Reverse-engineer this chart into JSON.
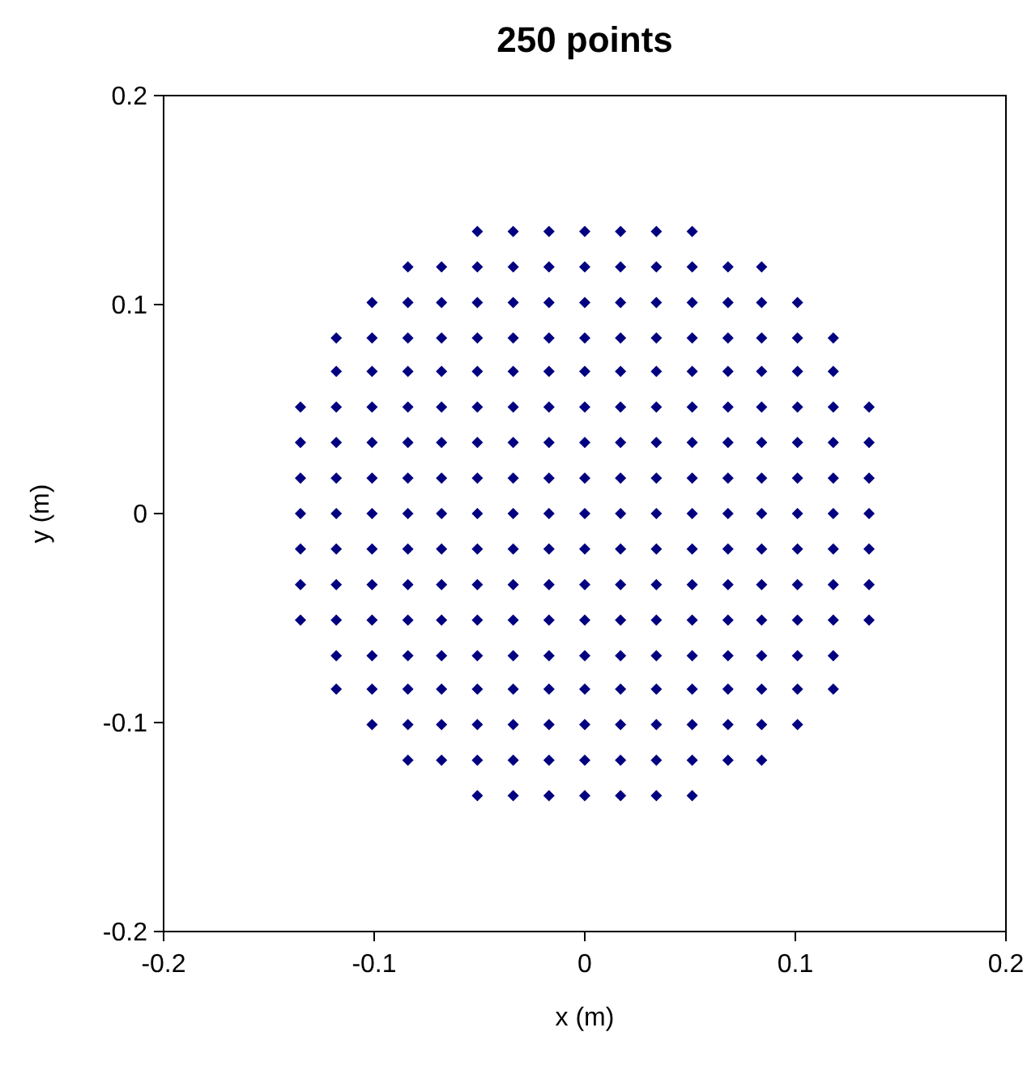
{
  "chart_data": {
    "type": "scatter",
    "title": "250 points",
    "xlabel": "x (m)",
    "ylabel": "y (m)",
    "xlim": [
      -0.2,
      0.2
    ],
    "ylim": [
      -0.2,
      0.2
    ],
    "xticks": [
      -0.2,
      -0.1,
      0,
      0.1,
      0.2
    ],
    "yticks": [
      -0.2,
      -0.1,
      0,
      0.1,
      0.2
    ],
    "grid": false,
    "marker": "diamond",
    "series": [
      {
        "color": "#000080",
        "x": [
          -0.051,
          -0.034,
          -0.017,
          0,
          0.017,
          0.034,
          0.051,
          -0.084,
          -0.068,
          -0.051,
          -0.034,
          -0.017,
          0,
          0.017,
          0.034,
          0.051,
          0.068,
          0.084,
          -0.101,
          -0.084,
          -0.068,
          -0.051,
          -0.034,
          -0.017,
          0,
          0.017,
          0.034,
          0.051,
          0.068,
          0.084,
          0.101,
          -0.118,
          -0.101,
          -0.084,
          -0.068,
          -0.051,
          -0.034,
          -0.017,
          0,
          0.017,
          0.034,
          0.051,
          0.068,
          0.084,
          0.101,
          0.118,
          -0.118,
          -0.101,
          -0.084,
          -0.068,
          -0.051,
          -0.034,
          -0.017,
          0,
          0.017,
          0.034,
          0.051,
          0.068,
          0.084,
          0.101,
          0.118,
          -0.135,
          -0.118,
          -0.101,
          -0.084,
          -0.068,
          -0.051,
          -0.034,
          -0.017,
          0,
          0.017,
          0.034,
          0.051,
          0.068,
          0.084,
          0.101,
          0.118,
          0.135,
          -0.135,
          -0.118,
          -0.101,
          -0.084,
          -0.068,
          -0.051,
          -0.034,
          -0.017,
          0,
          0.017,
          0.034,
          0.051,
          0.068,
          0.084,
          0.101,
          0.118,
          0.135,
          -0.135,
          -0.118,
          -0.101,
          -0.084,
          -0.068,
          -0.051,
          -0.034,
          -0.017,
          0,
          0.017,
          0.034,
          0.051,
          0.068,
          0.084,
          0.101,
          0.118,
          0.135,
          -0.135,
          -0.118,
          -0.101,
          -0.084,
          -0.068,
          -0.051,
          -0.034,
          -0.017,
          0,
          0.017,
          0.034,
          0.051,
          0.068,
          0.084,
          0.101,
          0.118,
          0.135,
          -0.135,
          -0.118,
          -0.101,
          -0.084,
          -0.068,
          -0.051,
          -0.034,
          -0.017,
          0,
          0.017,
          0.034,
          0.051,
          0.068,
          0.084,
          0.101,
          0.118,
          0.135,
          -0.135,
          -0.118,
          -0.101,
          -0.084,
          -0.068,
          -0.051,
          -0.034,
          -0.017,
          0,
          0.017,
          0.034,
          0.051,
          0.068,
          0.084,
          0.101,
          0.118,
          0.135,
          -0.135,
          -0.118,
          -0.101,
          -0.084,
          -0.068,
          -0.051,
          -0.034,
          -0.017,
          0,
          0.017,
          0.034,
          0.051,
          0.068,
          0.084,
          0.101,
          0.118,
          0.135,
          -0.118,
          -0.101,
          -0.084,
          -0.068,
          -0.051,
          -0.034,
          -0.017,
          0,
          0.017,
          0.034,
          0.051,
          0.068,
          0.084,
          0.101,
          0.118,
          -0.118,
          -0.101,
          -0.084,
          -0.068,
          -0.051,
          -0.034,
          -0.017,
          0,
          0.017,
          0.034,
          0.051,
          0.068,
          0.084,
          0.101,
          0.118,
          -0.101,
          -0.084,
          -0.068,
          -0.051,
          -0.034,
          -0.017,
          0,
          0.017,
          0.034,
          0.051,
          0.068,
          0.084,
          0.101,
          -0.084,
          -0.068,
          -0.051,
          -0.034,
          -0.017,
          0,
          0.017,
          0.034,
          0.051,
          0.068,
          0.084,
          -0.051,
          -0.034,
          -0.017,
          0,
          0.017,
          0.034,
          0.051
        ],
        "values": [
          0.135,
          0.135,
          0.135,
          0.135,
          0.135,
          0.135,
          0.135,
          0.118,
          0.118,
          0.118,
          0.118,
          0.118,
          0.118,
          0.118,
          0.118,
          0.118,
          0.118,
          0.118,
          0.101,
          0.101,
          0.101,
          0.101,
          0.101,
          0.101,
          0.101,
          0.101,
          0.101,
          0.101,
          0.101,
          0.101,
          0.101,
          0.084,
          0.084,
          0.084,
          0.084,
          0.084,
          0.084,
          0.084,
          0.084,
          0.084,
          0.084,
          0.084,
          0.084,
          0.084,
          0.084,
          0.084,
          0.068,
          0.068,
          0.068,
          0.068,
          0.068,
          0.068,
          0.068,
          0.068,
          0.068,
          0.068,
          0.068,
          0.068,
          0.068,
          0.068,
          0.068,
          0.051,
          0.051,
          0.051,
          0.051,
          0.051,
          0.051,
          0.051,
          0.051,
          0.051,
          0.051,
          0.051,
          0.051,
          0.051,
          0.051,
          0.051,
          0.051,
          0.051,
          0.034,
          0.034,
          0.034,
          0.034,
          0.034,
          0.034,
          0.034,
          0.034,
          0.034,
          0.034,
          0.034,
          0.034,
          0.034,
          0.034,
          0.034,
          0.034,
          0.034,
          0.017,
          0.017,
          0.017,
          0.017,
          0.017,
          0.017,
          0.017,
          0.017,
          0.017,
          0.017,
          0.017,
          0.017,
          0.017,
          0.017,
          0.017,
          0.017,
          0.017,
          0,
          0,
          0,
          0,
          0,
          0,
          0,
          0,
          0,
          0,
          0,
          0,
          0,
          0,
          0,
          0,
          0,
          -0.017,
          -0.017,
          -0.017,
          -0.017,
          -0.017,
          -0.017,
          -0.017,
          -0.017,
          -0.017,
          -0.017,
          -0.017,
          -0.017,
          -0.017,
          -0.017,
          -0.017,
          -0.017,
          -0.017,
          -0.034,
          -0.034,
          -0.034,
          -0.034,
          -0.034,
          -0.034,
          -0.034,
          -0.034,
          -0.034,
          -0.034,
          -0.034,
          -0.034,
          -0.034,
          -0.034,
          -0.034,
          -0.034,
          -0.034,
          -0.051,
          -0.051,
          -0.051,
          -0.051,
          -0.051,
          -0.051,
          -0.051,
          -0.051,
          -0.051,
          -0.051,
          -0.051,
          -0.051,
          -0.051,
          -0.051,
          -0.051,
          -0.051,
          -0.051,
          -0.068,
          -0.068,
          -0.068,
          -0.068,
          -0.068,
          -0.068,
          -0.068,
          -0.068,
          -0.068,
          -0.068,
          -0.068,
          -0.068,
          -0.068,
          -0.068,
          -0.068,
          -0.084,
          -0.084,
          -0.084,
          -0.084,
          -0.084,
          -0.084,
          -0.084,
          -0.084,
          -0.084,
          -0.084,
          -0.084,
          -0.084,
          -0.084,
          -0.084,
          -0.084,
          -0.101,
          -0.101,
          -0.101,
          -0.101,
          -0.101,
          -0.101,
          -0.101,
          -0.101,
          -0.101,
          -0.101,
          -0.101,
          -0.101,
          -0.101,
          -0.118,
          -0.118,
          -0.118,
          -0.118,
          -0.118,
          -0.118,
          -0.118,
          -0.118,
          -0.118,
          -0.118,
          -0.118,
          -0.135,
          -0.135,
          -0.135,
          -0.135,
          -0.135,
          -0.135,
          -0.135
        ]
      }
    ]
  }
}
